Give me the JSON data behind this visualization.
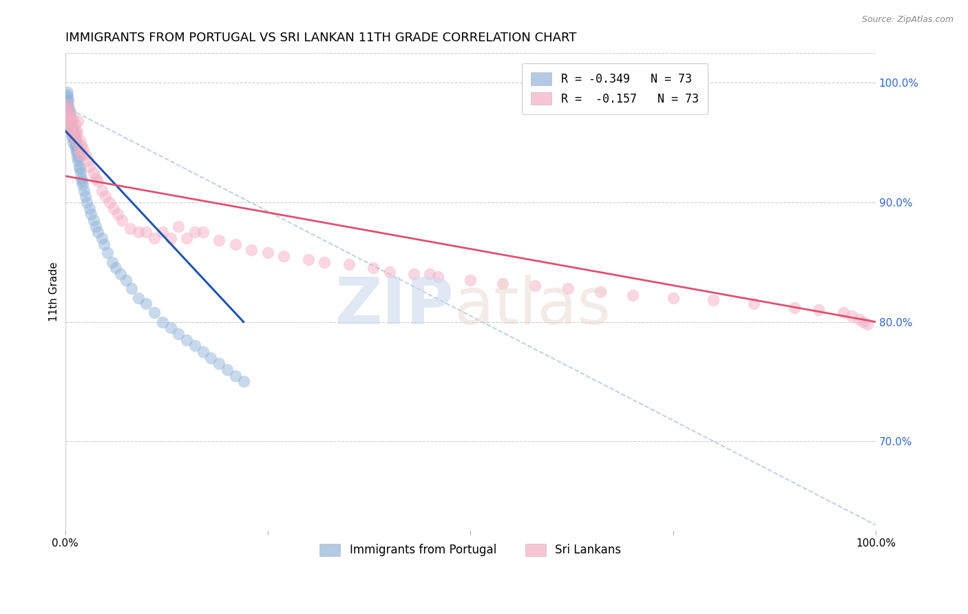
{
  "title": "IMMIGRANTS FROM PORTUGAL VS SRI LANKAN 11TH GRADE CORRELATION CHART",
  "source": "Source: ZipAtlas.com",
  "ylabel": "11th Grade",
  "legend_blue_r": "R = -0.349",
  "legend_blue_n": "N = 73",
  "legend_pink_r": "R =  -0.157",
  "legend_pink_n": "N = 73",
  "legend_blue_label": "Immigrants from Portugal",
  "legend_pink_label": "Sri Lankans",
  "ytick_labels": [
    "100.0%",
    "90.0%",
    "80.0%",
    "70.0%"
  ],
  "ytick_values": [
    1.0,
    0.9,
    0.8,
    0.7
  ],
  "bg_color": "#ffffff",
  "blue_color": "#92b4d8",
  "pink_color": "#f4afc4",
  "blue_line_color": "#2255aa",
  "pink_line_color": "#e05070",
  "dashed_line_color": "#b8cce4",
  "title_fontsize": 13,
  "axis_label_fontsize": 11,
  "tick_fontsize": 11,
  "right_tick_color": "#3366cc",
  "xlim": [
    0.0,
    1.0
  ],
  "ylim": [
    0.625,
    1.025
  ],
  "blue_scatter_x": [
    0.002,
    0.002,
    0.003,
    0.003,
    0.003,
    0.004,
    0.004,
    0.004,
    0.005,
    0.005,
    0.005,
    0.006,
    0.006,
    0.007,
    0.007,
    0.007,
    0.008,
    0.008,
    0.008,
    0.009,
    0.009,
    0.01,
    0.01,
    0.01,
    0.011,
    0.011,
    0.012,
    0.012,
    0.013,
    0.013,
    0.014,
    0.014,
    0.015,
    0.015,
    0.016,
    0.016,
    0.017,
    0.017,
    0.018,
    0.019,
    0.02,
    0.021,
    0.022,
    0.023,
    0.025,
    0.027,
    0.03,
    0.032,
    0.035,
    0.038,
    0.04,
    0.045,
    0.048,
    0.052,
    0.058,
    0.062,
    0.068,
    0.075,
    0.082,
    0.09,
    0.1,
    0.11,
    0.12,
    0.13,
    0.14,
    0.15,
    0.16,
    0.17,
    0.18,
    0.19,
    0.2,
    0.21,
    0.22
  ],
  "blue_scatter_y": [
    0.99,
    0.985,
    0.992,
    0.988,
    0.982,
    0.985,
    0.98,
    0.975,
    0.978,
    0.972,
    0.968,
    0.975,
    0.97,
    0.968,
    0.965,
    0.96,
    0.965,
    0.96,
    0.955,
    0.962,
    0.958,
    0.96,
    0.955,
    0.95,
    0.958,
    0.952,
    0.955,
    0.948,
    0.952,
    0.945,
    0.948,
    0.942,
    0.945,
    0.938,
    0.942,
    0.935,
    0.938,
    0.93,
    0.928,
    0.925,
    0.92,
    0.918,
    0.915,
    0.91,
    0.905,
    0.9,
    0.895,
    0.89,
    0.885,
    0.88,
    0.875,
    0.87,
    0.865,
    0.858,
    0.85,
    0.845,
    0.84,
    0.835,
    0.828,
    0.82,
    0.815,
    0.808,
    0.8,
    0.795,
    0.79,
    0.785,
    0.78,
    0.775,
    0.77,
    0.765,
    0.76,
    0.755,
    0.75
  ],
  "pink_scatter_x": [
    0.003,
    0.004,
    0.005,
    0.006,
    0.006,
    0.007,
    0.008,
    0.009,
    0.01,
    0.011,
    0.012,
    0.013,
    0.014,
    0.015,
    0.016,
    0.017,
    0.018,
    0.019,
    0.02,
    0.022,
    0.025,
    0.028,
    0.03,
    0.035,
    0.038,
    0.04,
    0.045,
    0.05,
    0.055,
    0.06,
    0.065,
    0.07,
    0.08,
    0.09,
    0.1,
    0.11,
    0.12,
    0.14,
    0.15,
    0.17,
    0.19,
    0.21,
    0.23,
    0.25,
    0.27,
    0.3,
    0.32,
    0.35,
    0.38,
    0.4,
    0.43,
    0.46,
    0.5,
    0.54,
    0.58,
    0.62,
    0.66,
    0.7,
    0.75,
    0.8,
    0.85,
    0.9,
    0.93,
    0.96,
    0.97,
    0.98,
    0.985,
    0.99,
    0.002,
    0.003,
    0.13,
    0.16,
    0.45
  ],
  "pink_scatter_y": [
    0.97,
    0.968,
    0.972,
    0.966,
    0.975,
    0.964,
    0.962,
    0.958,
    0.97,
    0.956,
    0.965,
    0.952,
    0.96,
    0.958,
    0.968,
    0.944,
    0.952,
    0.94,
    0.948,
    0.945,
    0.94,
    0.935,
    0.93,
    0.925,
    0.92,
    0.918,
    0.91,
    0.905,
    0.9,
    0.895,
    0.89,
    0.885,
    0.878,
    0.875,
    0.875,
    0.87,
    0.875,
    0.88,
    0.87,
    0.875,
    0.868,
    0.865,
    0.86,
    0.858,
    0.855,
    0.852,
    0.85,
    0.848,
    0.845,
    0.842,
    0.84,
    0.838,
    0.835,
    0.832,
    0.83,
    0.828,
    0.825,
    0.822,
    0.82,
    0.818,
    0.815,
    0.812,
    0.81,
    0.808,
    0.805,
    0.802,
    0.8,
    0.798,
    0.978,
    0.982,
    0.87,
    0.875,
    0.84
  ],
  "blue_line_x": [
    0.0,
    0.22
  ],
  "blue_line_y": [
    0.96,
    0.8
  ],
  "pink_line_x": [
    0.0,
    1.0
  ],
  "pink_line_y": [
    0.922,
    0.8
  ],
  "dashed_line_x": [
    0.0,
    1.0
  ],
  "dashed_line_y": [
    0.98,
    0.63
  ]
}
